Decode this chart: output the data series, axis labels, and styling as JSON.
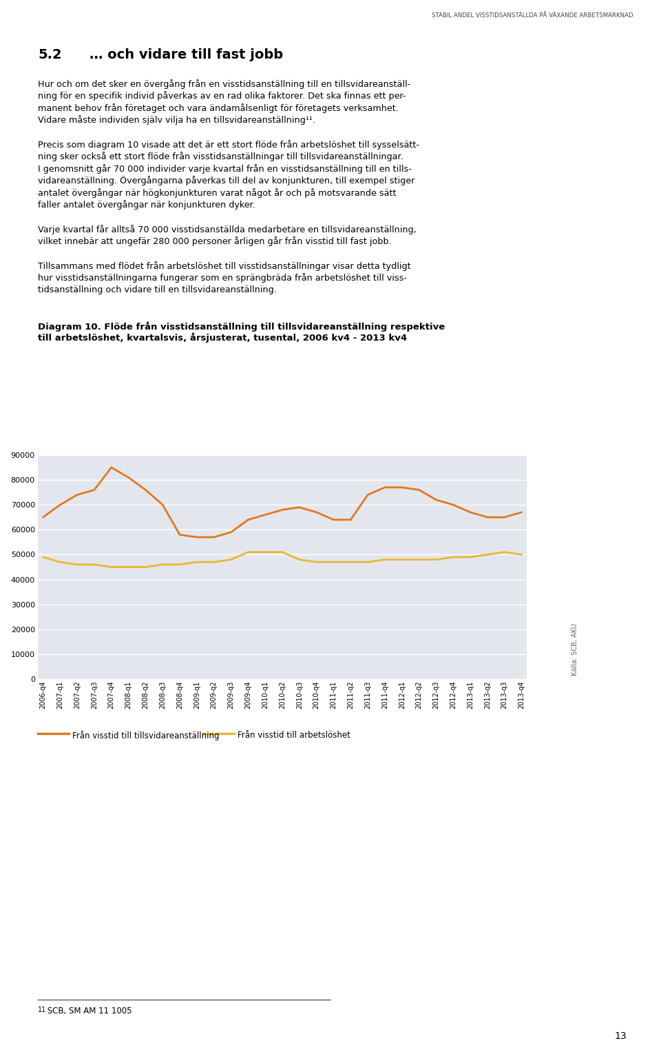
{
  "header": "STABIL ANDEL VISSTIDSANSTÄLLDA PÅ VÄXANDE ARBETSMARKNAD",
  "section_num": "5.2",
  "section_title": "… och vidare till fast jobb",
  "para1_line1": "Hur och om det sker en övergång från en visstidsanställning till en tillsvidareanställ-",
  "para1_line2": "ning för en specifik individ påverkas av en rad olika faktorer. Det ska finnas ett per-",
  "para1_line3": "manent behov från företaget och vara ändamålsenligt för företagets verksamhet.",
  "para1_line4": "Vidare måste individen själv vilja ha en tillsvidareanställning¹¹.",
  "para2_line1": "Precis som diagram 10 visade att det är ett stort flöde från arbetslöshet till sysselsätt-",
  "para2_line2": "ning sker också ett stort flöde från visstidsanställningar till tillsvidareanställningar.",
  "para2_line3": "I genomsnitt går 70 000 individer varje kvartal från en visstidsanställning till en tills-",
  "para2_line4": "vidareanställning. Övergångarna påverkas till del av konjunkturen, till exempel stiger",
  "para2_line5": "antalet övergångar när högkonjunkturen varat något år och på motsvarande sätt",
  "para2_line6": "faller antalet övergångar när konjunkturen dyker.",
  "para3_line1": "Varje kvartal får alltså 70 000 visstidsanställda medarbetare en tillsvidareanställning,",
  "para3_line2": "vilket innebär att ungefär 280 000 personer årligen går från visstid till fast jobb.",
  "para4_line1": "Tillsammans med flödet från arbetslöshet till visstidsanställningar visar detta tydligt",
  "para4_line2": "hur visstidsanställningarna fungerar som en sprängbräda från arbetslöshet till viss-",
  "para4_line3": "tidsanställning och vidare till en tillsvidareanställning.",
  "chart_title1": "Diagram 10. Flöde från visstidsanställning till tillsvidareanställning respektive",
  "chart_title2": "till arbetslöshet, kvartalsvis, årsjusterat, tusental, 2006 kv4 - 2013 kv4",
  "source_text": "Källa: SCB, AKU",
  "footnote_num": "11",
  "footnote_text": " SCB, SM AM 11 1005",
  "page_number": "13",
  "x_labels": [
    "2006-q4",
    "2007-q1",
    "2007-q2",
    "2007-q3",
    "2007-q4",
    "2008-q1",
    "2008-q2",
    "2008-q3",
    "2008-q4",
    "2009-q1",
    "2009-q2",
    "2009-q3",
    "2009-q4",
    "2010-q1",
    "2010-q2",
    "2010-q3",
    "2010-q4",
    "2011-q1",
    "2011-q2",
    "2011-q3",
    "2011-q4",
    "2012-q1",
    "2012-q2",
    "2012-q3",
    "2012-q4",
    "2013-q1",
    "2013-q2",
    "2013-q3",
    "2013-q4"
  ],
  "series1_label": "Från visstid till tillsvidareanställning",
  "series2_label": "Från visstid till arbetslöshet",
  "series1_color": "#E07820",
  "series2_color": "#E8B830",
  "series1_values": [
    65000,
    70000,
    74000,
    76000,
    85000,
    81000,
    76000,
    70000,
    58000,
    57000,
    57000,
    59000,
    64000,
    66000,
    68000,
    69000,
    67000,
    64000,
    64000,
    74000,
    77000,
    77000,
    76000,
    72000,
    70000,
    67000,
    65000,
    65000,
    67000
  ],
  "series2_values": [
    49000,
    47000,
    46000,
    46000,
    45000,
    45000,
    45000,
    46000,
    46000,
    47000,
    47000,
    48000,
    51000,
    51000,
    51000,
    48000,
    47000,
    47000,
    47000,
    47000,
    48000,
    48000,
    48000,
    48000,
    49000,
    49000,
    50000,
    51000,
    50000
  ],
  "ylim": [
    0,
    90000
  ],
  "yticks": [
    0,
    10000,
    20000,
    30000,
    40000,
    50000,
    60000,
    70000,
    80000,
    90000
  ],
  "chart_bg_color": "#E4E6EE",
  "fig_bg_color": "#FFFFFF"
}
